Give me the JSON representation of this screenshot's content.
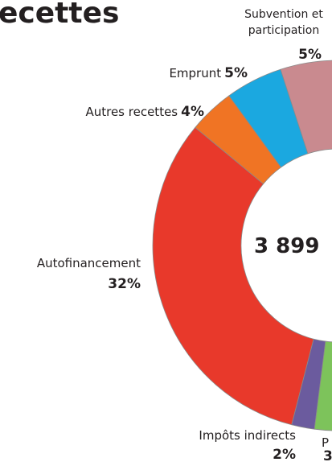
{
  "chart_data": {
    "type": "pie",
    "donut": true,
    "title": "ecettes",
    "center_label": "3 899",
    "categories": [
      "Subvention et participation",
      "Emprunt",
      "Autres recettes",
      "Autofinancement",
      "Impôts indirects"
    ],
    "values": [
      5,
      5,
      4,
      32,
      2
    ],
    "value_labels": [
      "5%",
      "5%",
      "4%",
      "32%",
      "2%"
    ],
    "colors": [
      "#c98a8f",
      "#1ba8e0",
      "#f07424",
      "#e8392b",
      "#6b5b9e"
    ],
    "annotations": [
      "P",
      "3"
    ]
  }
}
